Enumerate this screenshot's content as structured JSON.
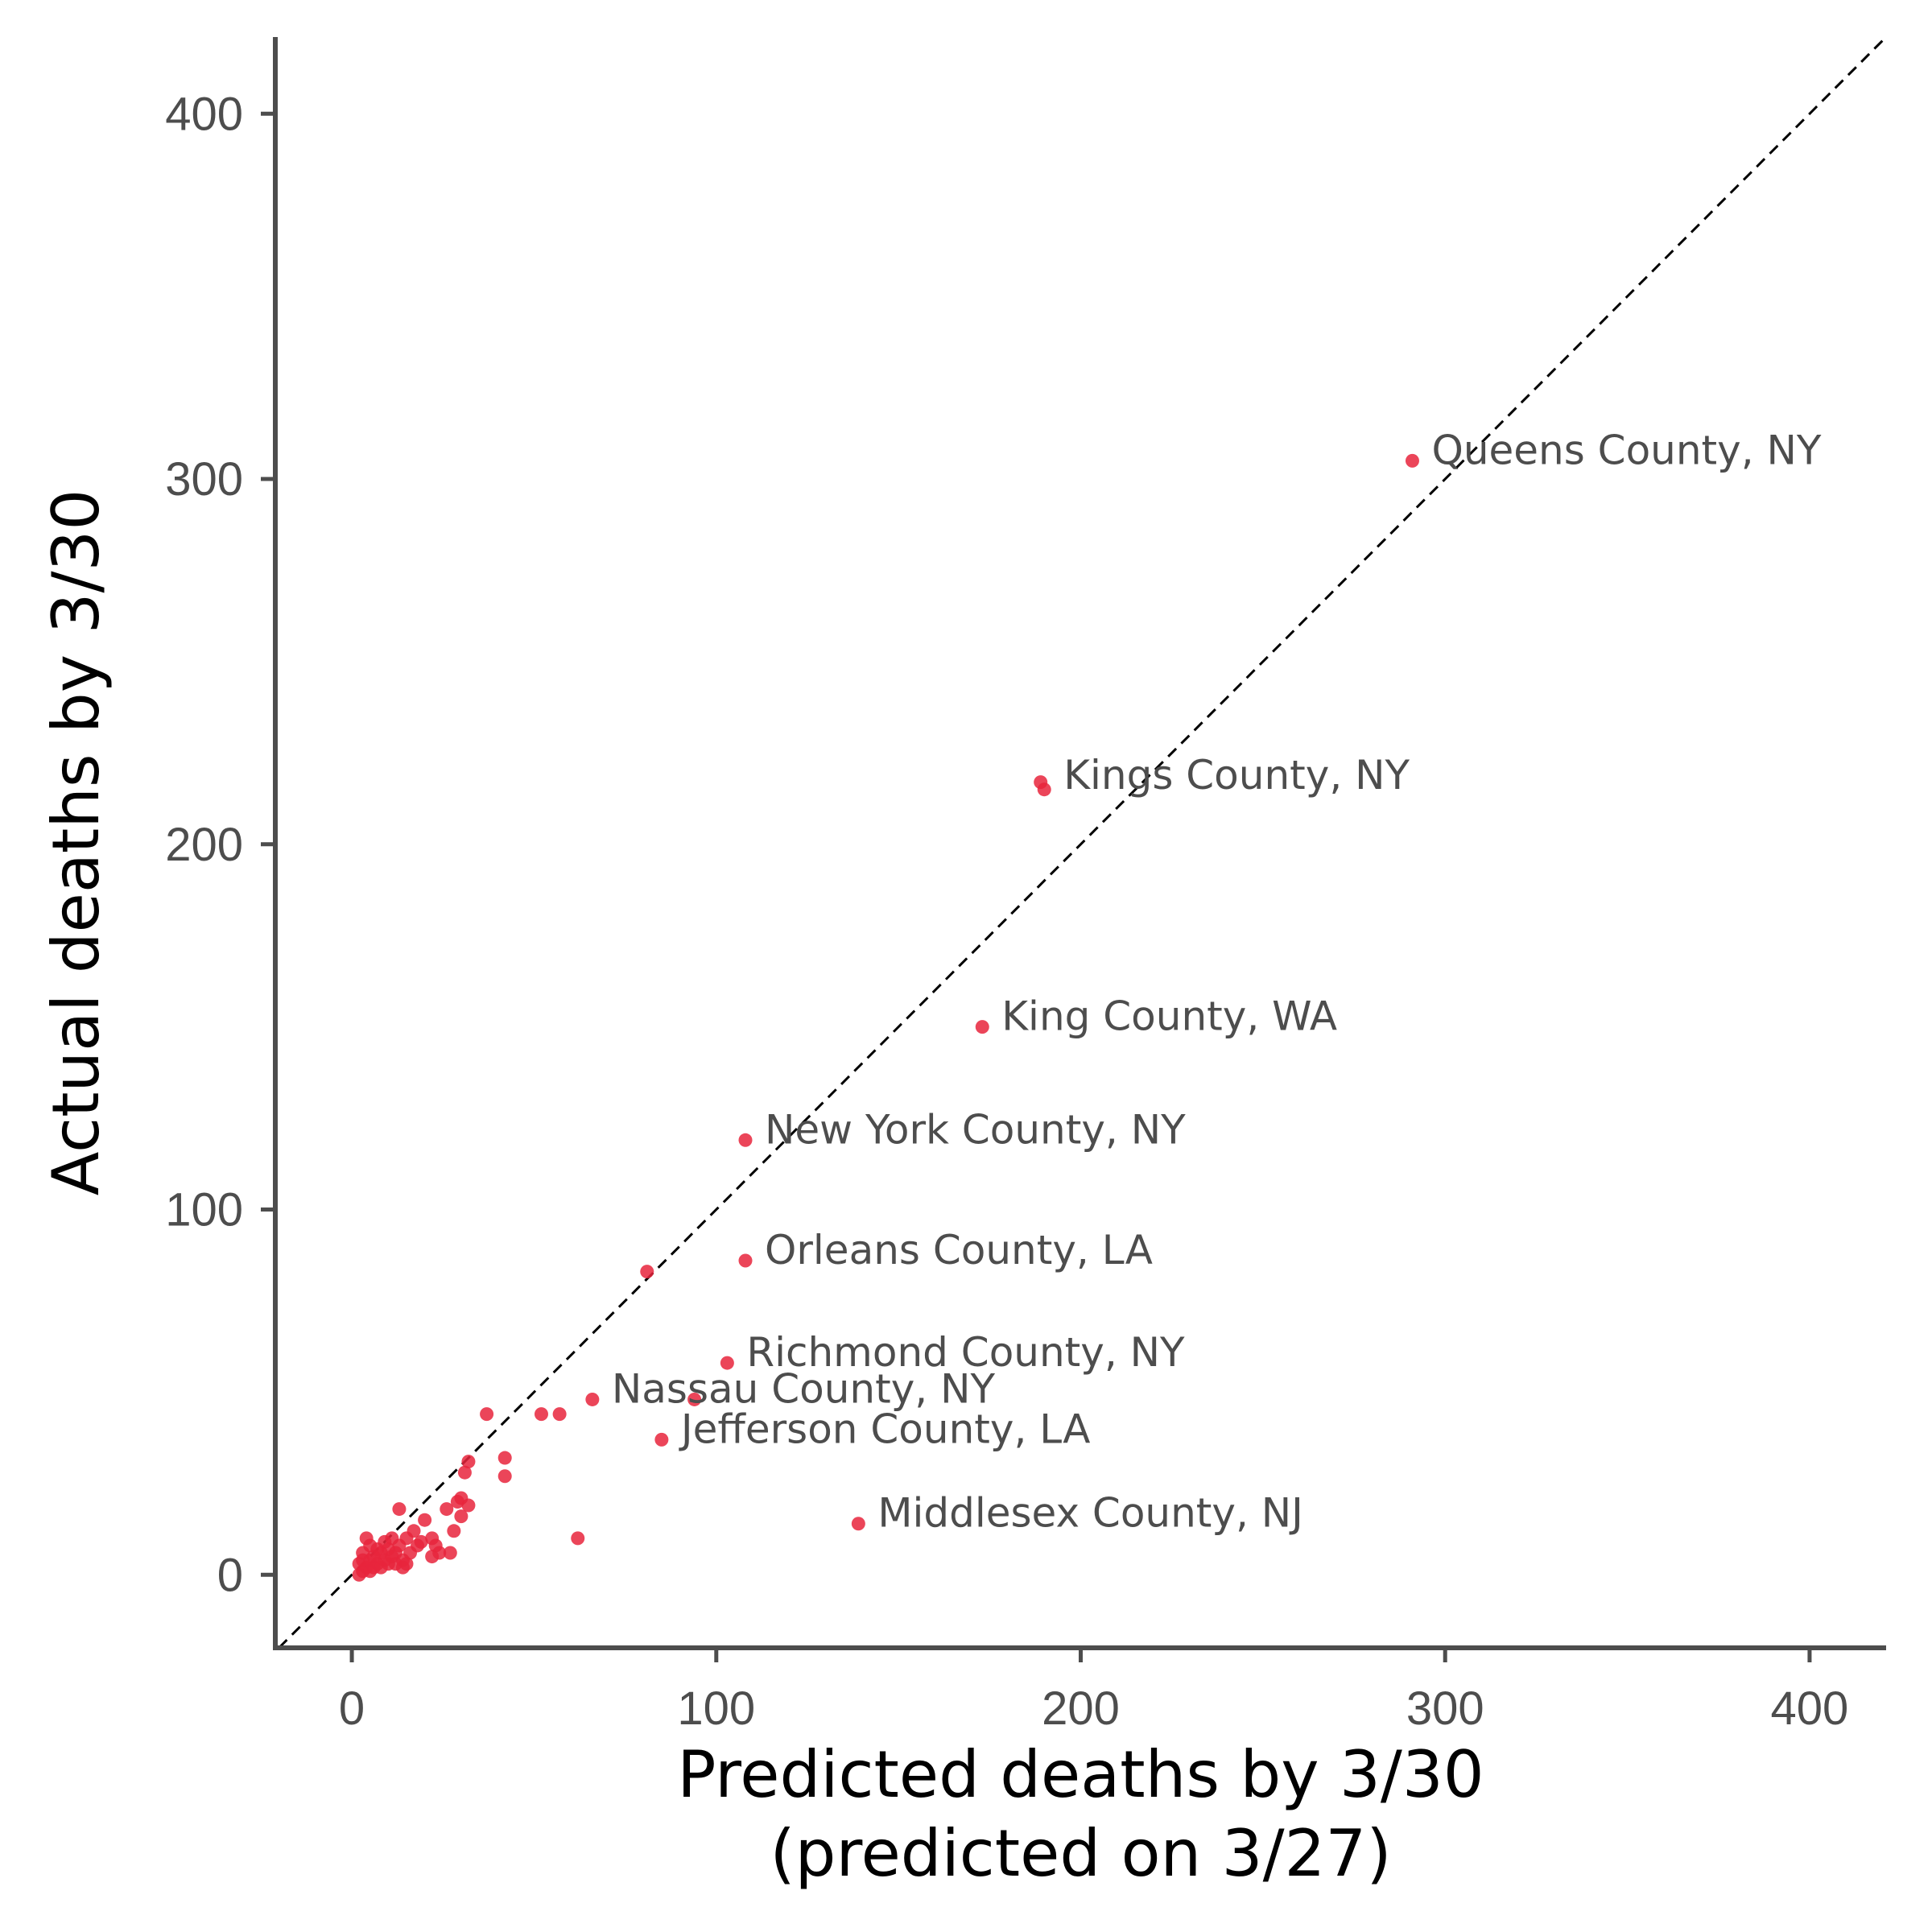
{
  "chart_data": {
    "type": "scatter",
    "title": "",
    "xlabel_lines": [
      "Predicted deaths by 3/30",
      "(predicted on 3/27)"
    ],
    "ylabel": "Actual deaths by 3/30",
    "xlim": [
      -21,
      421
    ],
    "ylim": [
      -20,
      421
    ],
    "x_ticks": [
      0,
      100,
      200,
      300,
      400
    ],
    "y_ticks": [
      0,
      100,
      200,
      300,
      400
    ],
    "grid": false,
    "legend": "none",
    "reference_line": "y = x (dashed)",
    "point_color": "#e8243c",
    "labeled_points": [
      {
        "label": "Queens County, NY",
        "x": 291,
        "y": 305
      },
      {
        "label": "Kings County, NY",
        "x": 190,
        "y": 216
      },
      {
        "label": "King County, WA",
        "x": 173,
        "y": 150
      },
      {
        "label": "New York County, NY",
        "x": 108,
        "y": 119
      },
      {
        "label": "Orleans County, LA",
        "x": 108,
        "y": 86
      },
      {
        "label": "Richmond County, NY",
        "x": 103,
        "y": 58
      },
      {
        "label": "Nassau County, NY",
        "x": 66,
        "y": 48
      },
      {
        "label": "Jefferson County, LA",
        "x": 85,
        "y": 37
      },
      {
        "label": "Middlesex County, NJ",
        "x": 139,
        "y": 14
      }
    ],
    "points": [
      {
        "x": 291,
        "y": 305
      },
      {
        "x": 189,
        "y": 217
      },
      {
        "x": 190,
        "y": 215
      },
      {
        "x": 173,
        "y": 150
      },
      {
        "x": 108,
        "y": 119
      },
      {
        "x": 108,
        "y": 86
      },
      {
        "x": 81,
        "y": 83
      },
      {
        "x": 103,
        "y": 58
      },
      {
        "x": 66,
        "y": 48
      },
      {
        "x": 94,
        "y": 48
      },
      {
        "x": 85,
        "y": 37
      },
      {
        "x": 139,
        "y": 14
      },
      {
        "x": 37,
        "y": 44
      },
      {
        "x": 52,
        "y": 44
      },
      {
        "x": 57,
        "y": 44
      },
      {
        "x": 42,
        "y": 32
      },
      {
        "x": 42,
        "y": 27
      },
      {
        "x": 32,
        "y": 31
      },
      {
        "x": 31,
        "y": 28
      },
      {
        "x": 62,
        "y": 10
      },
      {
        "x": 30,
        "y": 21
      },
      {
        "x": 29,
        "y": 20
      },
      {
        "x": 32,
        "y": 19
      },
      {
        "x": 30,
        "y": 16
      },
      {
        "x": 26,
        "y": 18
      },
      {
        "x": 13,
        "y": 18
      },
      {
        "x": 20,
        "y": 15
      },
      {
        "x": 28,
        "y": 12
      },
      {
        "x": 27,
        "y": 6
      },
      {
        "x": 22,
        "y": 10
      },
      {
        "x": 23,
        "y": 8
      },
      {
        "x": 22,
        "y": 5
      },
      {
        "x": 24,
        "y": 6
      },
      {
        "x": 17,
        "y": 12
      },
      {
        "x": 15,
        "y": 10
      },
      {
        "x": 18,
        "y": 8
      },
      {
        "x": 16,
        "y": 6
      },
      {
        "x": 14,
        "y": 4
      },
      {
        "x": 13,
        "y": 8
      },
      {
        "x": 12,
        "y": 6
      },
      {
        "x": 11,
        "y": 10
      },
      {
        "x": 10,
        "y": 7
      },
      {
        "x": 9,
        "y": 4
      },
      {
        "x": 8,
        "y": 6
      },
      {
        "x": 7,
        "y": 3
      },
      {
        "x": 6,
        "y": 5
      },
      {
        "x": 5,
        "y": 8
      },
      {
        "x": 4,
        "y": 10
      },
      {
        "x": 4,
        "y": 2
      },
      {
        "x": 3,
        "y": 4
      },
      {
        "x": 3,
        "y": 1
      },
      {
        "x": 2,
        "y": 3
      },
      {
        "x": 2,
        "y": 0
      },
      {
        "x": 5,
        "y": 1
      },
      {
        "x": 6,
        "y": 2
      },
      {
        "x": 8,
        "y": 2
      },
      {
        "x": 10,
        "y": 3
      },
      {
        "x": 12,
        "y": 3
      },
      {
        "x": 14,
        "y": 2
      },
      {
        "x": 9,
        "y": 9
      },
      {
        "x": 7,
        "y": 7
      },
      {
        "x": 11,
        "y": 5
      },
      {
        "x": 19,
        "y": 9
      },
      {
        "x": 15,
        "y": 3
      },
      {
        "x": 3,
        "y": 6
      },
      {
        "x": 5,
        "y": 4
      }
    ]
  }
}
